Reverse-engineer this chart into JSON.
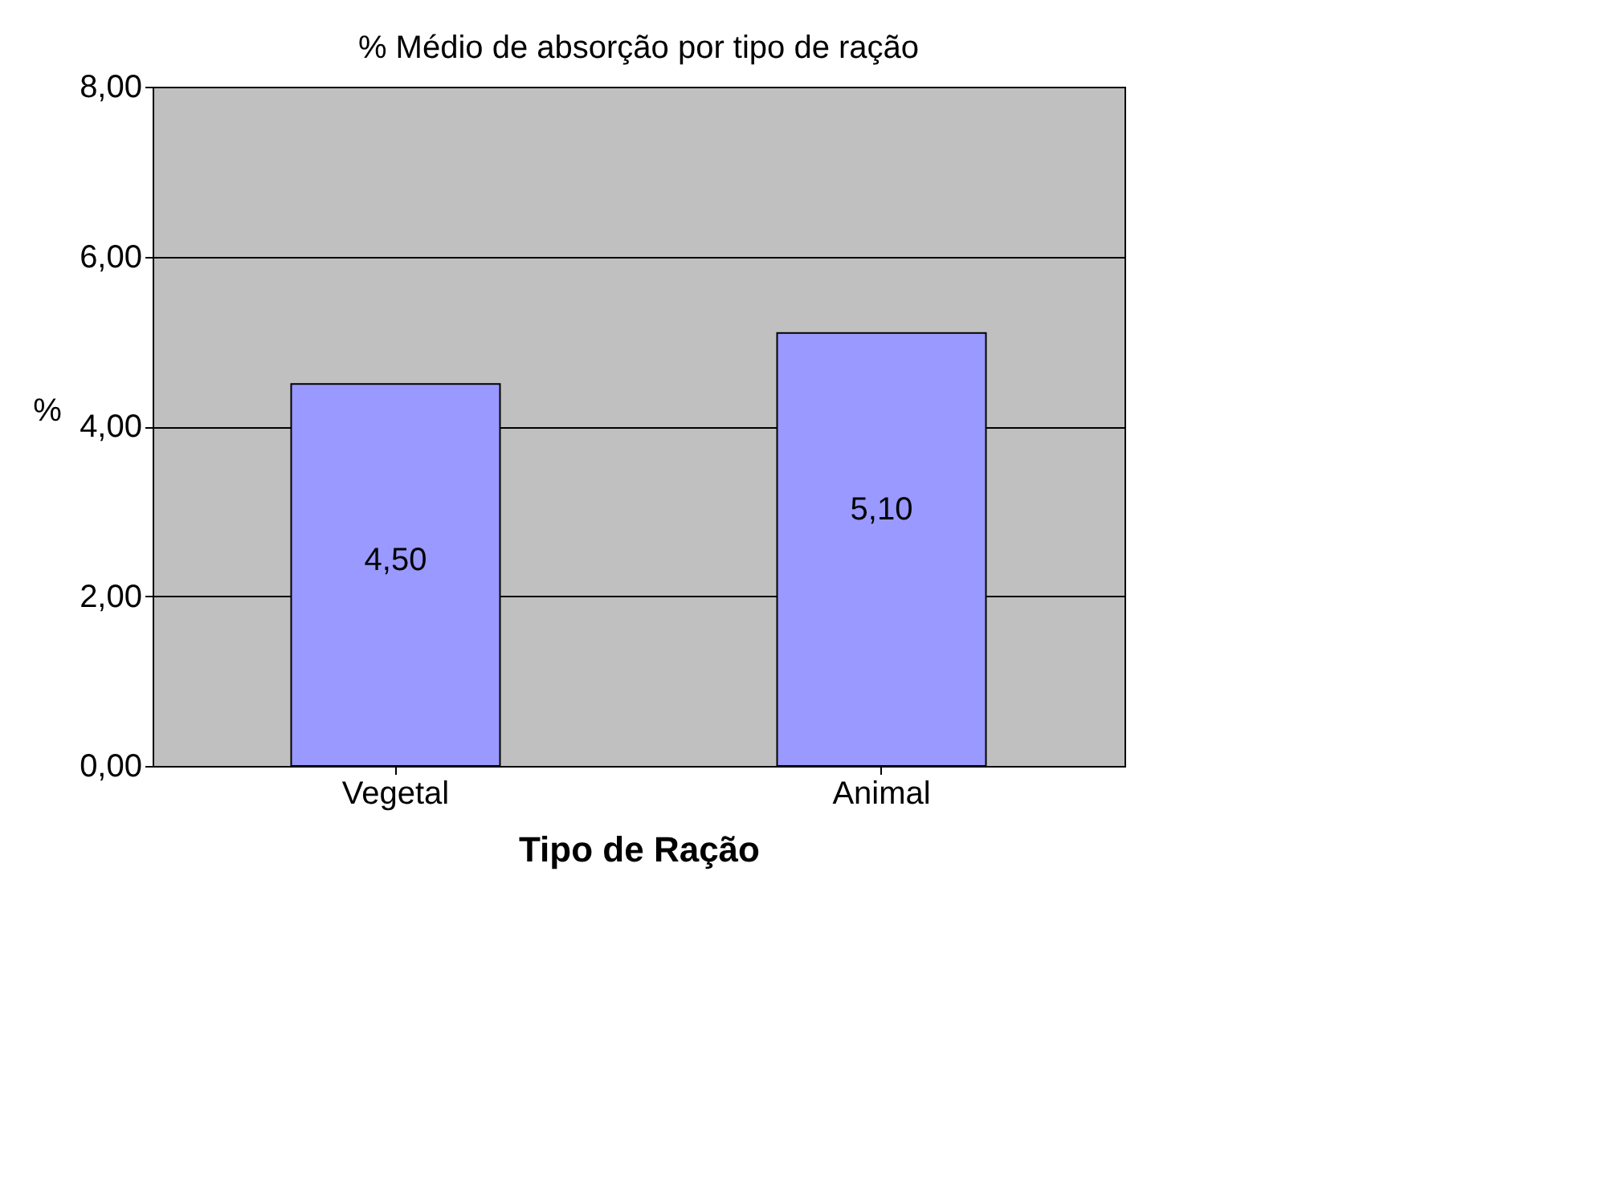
{
  "chart_data": {
    "type": "bar",
    "title": "% Médio de absorção por tipo de ração",
    "xlabel": "Tipo de Ração",
    "ylabel": "%",
    "categories": [
      "Vegetal",
      "Animal"
    ],
    "series": [
      {
        "color": "#9999ff",
        "values": [
          4.5,
          5.1
        ],
        "value_labels": [
          "4,50",
          "5,10"
        ]
      }
    ],
    "ylim": [
      0,
      8
    ],
    "yticks": [
      {
        "value": 0,
        "label": "0,00"
      },
      {
        "value": 2,
        "label": "2,00"
      },
      {
        "value": 4,
        "label": "4,00"
      },
      {
        "value": 6,
        "label": "6,00"
      },
      {
        "value": 8,
        "label": "8,00"
      }
    ],
    "grid": "y",
    "legend": false
  }
}
